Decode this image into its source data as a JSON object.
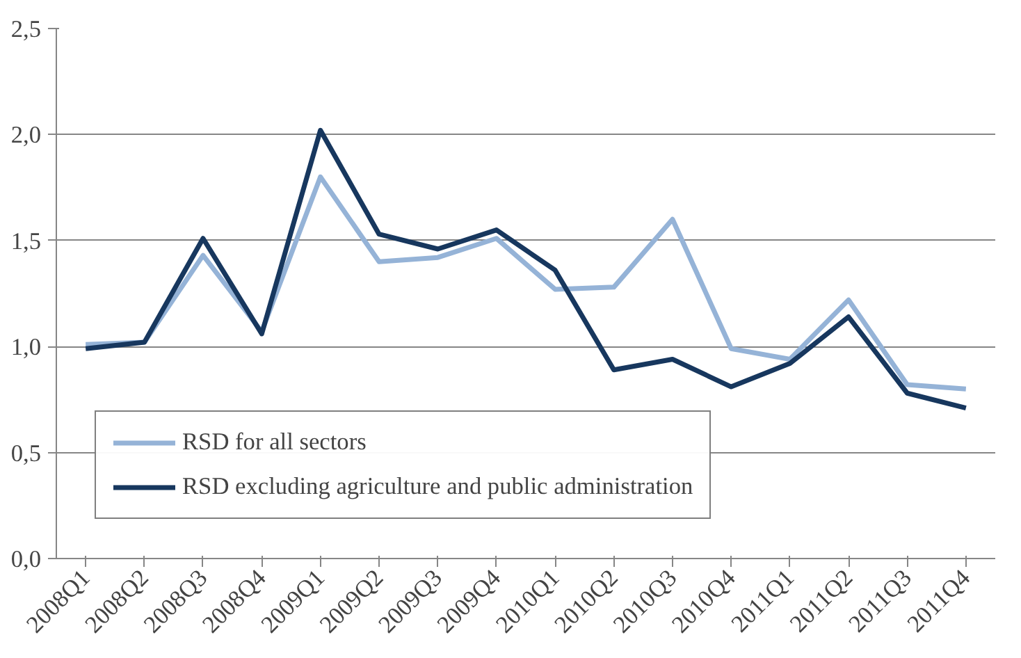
{
  "chart_data": {
    "type": "line",
    "categories": [
      "2008Q1",
      "2008Q2",
      "2008Q3",
      "2008Q4",
      "2009Q1",
      "2009Q2",
      "2009Q3",
      "2009Q4",
      "2010Q1",
      "2010Q2",
      "2010Q3",
      "2010Q4",
      "2011Q1",
      "2011Q2",
      "2011Q3",
      "2011Q4"
    ],
    "series": [
      {
        "name": "RSD for all sectors",
        "color": "#95b3d7",
        "values": [
          1.01,
          1.02,
          1.43,
          1.07,
          1.8,
          1.4,
          1.42,
          1.51,
          1.27,
          1.28,
          1.6,
          0.99,
          0.94,
          1.22,
          0.82,
          0.8
        ]
      },
      {
        "name": "RSD excluding agriculture and public administration",
        "color": "#17375e",
        "values": [
          0.99,
          1.02,
          1.51,
          1.06,
          2.02,
          1.53,
          1.46,
          1.55,
          1.36,
          0.89,
          0.94,
          0.81,
          0.92,
          1.14,
          0.78,
          0.71
        ]
      }
    ],
    "ylim": [
      0,
      2.5
    ],
    "yticks": [
      {
        "value": 0,
        "label": "0,0"
      },
      {
        "value": 0.5,
        "label": "0,5"
      },
      {
        "value": 1,
        "label": "1,0"
      },
      {
        "value": 1.5,
        "label": "1,5"
      },
      {
        "value": 2,
        "label": "2,0"
      },
      {
        "value": 2.5,
        "label": "2,5"
      }
    ],
    "grid": "y",
    "legend": "bottom left",
    "line_style": "solid",
    "marker": "none"
  }
}
